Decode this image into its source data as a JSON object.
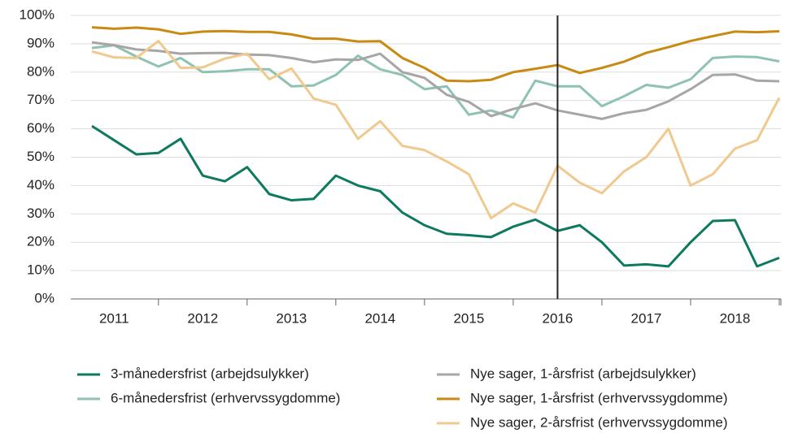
{
  "chart_data": {
    "type": "line",
    "categories": [
      null,
      "2011",
      null,
      null,
      null,
      "2012",
      null,
      null,
      null,
      "2013",
      null,
      null,
      null,
      "2014",
      null,
      null,
      null,
      "2015",
      null,
      null,
      null,
      "2016",
      null,
      null,
      null,
      "2017",
      null,
      null,
      null,
      "2018",
      null,
      null
    ],
    "vline": "2016",
    "ylim": [
      0,
      100
    ],
    "yticks": [
      {
        "value": 0,
        "label": "0%"
      },
      {
        "value": 10,
        "label": "10%"
      },
      {
        "value": 20,
        "label": "20%"
      },
      {
        "value": 30,
        "label": "30%"
      },
      {
        "value": 40,
        "label": "40%"
      },
      {
        "value": 50,
        "label": "50%"
      },
      {
        "value": 60,
        "label": "60%"
      },
      {
        "value": 70,
        "label": "70%"
      },
      {
        "value": 80,
        "label": "80%"
      },
      {
        "value": 90,
        "label": "90%"
      },
      {
        "value": 100,
        "label": "100%"
      }
    ],
    "grid": true,
    "series": [
      {
        "name": "3-månedersfrist (arbejdsulykker)",
        "color": "#0d7a5f",
        "values": [
          61,
          56,
          51,
          51.5,
          56.5,
          43.5,
          41.5,
          46.5,
          37,
          34.8,
          35.3,
          43.5,
          40,
          38,
          30.5,
          26,
          23,
          22.5,
          21.8,
          25.5,
          28,
          24,
          26,
          20,
          11.8,
          12.2,
          11.5,
          20,
          27.5,
          27.8,
          11.5,
          14.5
        ]
      },
      {
        "name": "6-månedersfrist (erhvervssygdomme)",
        "color": "#8fc2b0",
        "values": [
          88.5,
          89.5,
          85.5,
          82,
          85,
          80,
          80.3,
          81,
          81,
          75,
          75.3,
          79,
          85.8,
          81,
          79,
          74,
          75,
          65,
          66.5,
          64,
          77,
          75,
          75,
          68,
          71.5,
          75.5,
          74.5,
          77.5,
          85,
          85.5,
          85.3,
          83.8
        ]
      },
      {
        "name": "Nye sager, 1-årsfrist (arbejdsulykker)",
        "color": "#a8a5a5",
        "values": [
          90.5,
          89.5,
          88,
          87.5,
          86.5,
          86.7,
          86.8,
          86.2,
          86,
          85,
          83.5,
          84.5,
          84.3,
          86.5,
          80,
          78,
          72,
          69.5,
          64.5,
          67,
          69,
          66.5,
          65,
          63.5,
          65.5,
          66.7,
          69.7,
          74,
          79,
          79.2,
          77,
          76.8
        ]
      },
      {
        "name": "Nye sager, 1-årsfrist (erhvervssygdomme)",
        "color": "#c98a12",
        "values": [
          95.8,
          95.3,
          95.7,
          95.1,
          93.5,
          94.3,
          94.5,
          94.2,
          94.2,
          93.3,
          91.8,
          91.8,
          90.8,
          90.9,
          85,
          81.5,
          77,
          76.8,
          77.3,
          80,
          81.2,
          82.5,
          79.7,
          81.5,
          83.7,
          86.8,
          88.8,
          91,
          92.7,
          94.3,
          94.1,
          94.4
        ]
      },
      {
        "name": "Nye sager, 2-årsfrist (erhvervssygdomme)",
        "color": "#f0c98e",
        "values": [
          87.3,
          85.2,
          85,
          91,
          81.5,
          81.7,
          84.8,
          86.5,
          77.5,
          81.3,
          70.7,
          68.5,
          56.5,
          62.7,
          54,
          52.5,
          48.5,
          44,
          28.5,
          33.7,
          30.5,
          47,
          41,
          37.3,
          45,
          50,
          60,
          40,
          44,
          53,
          56,
          71
        ]
      }
    ]
  }
}
